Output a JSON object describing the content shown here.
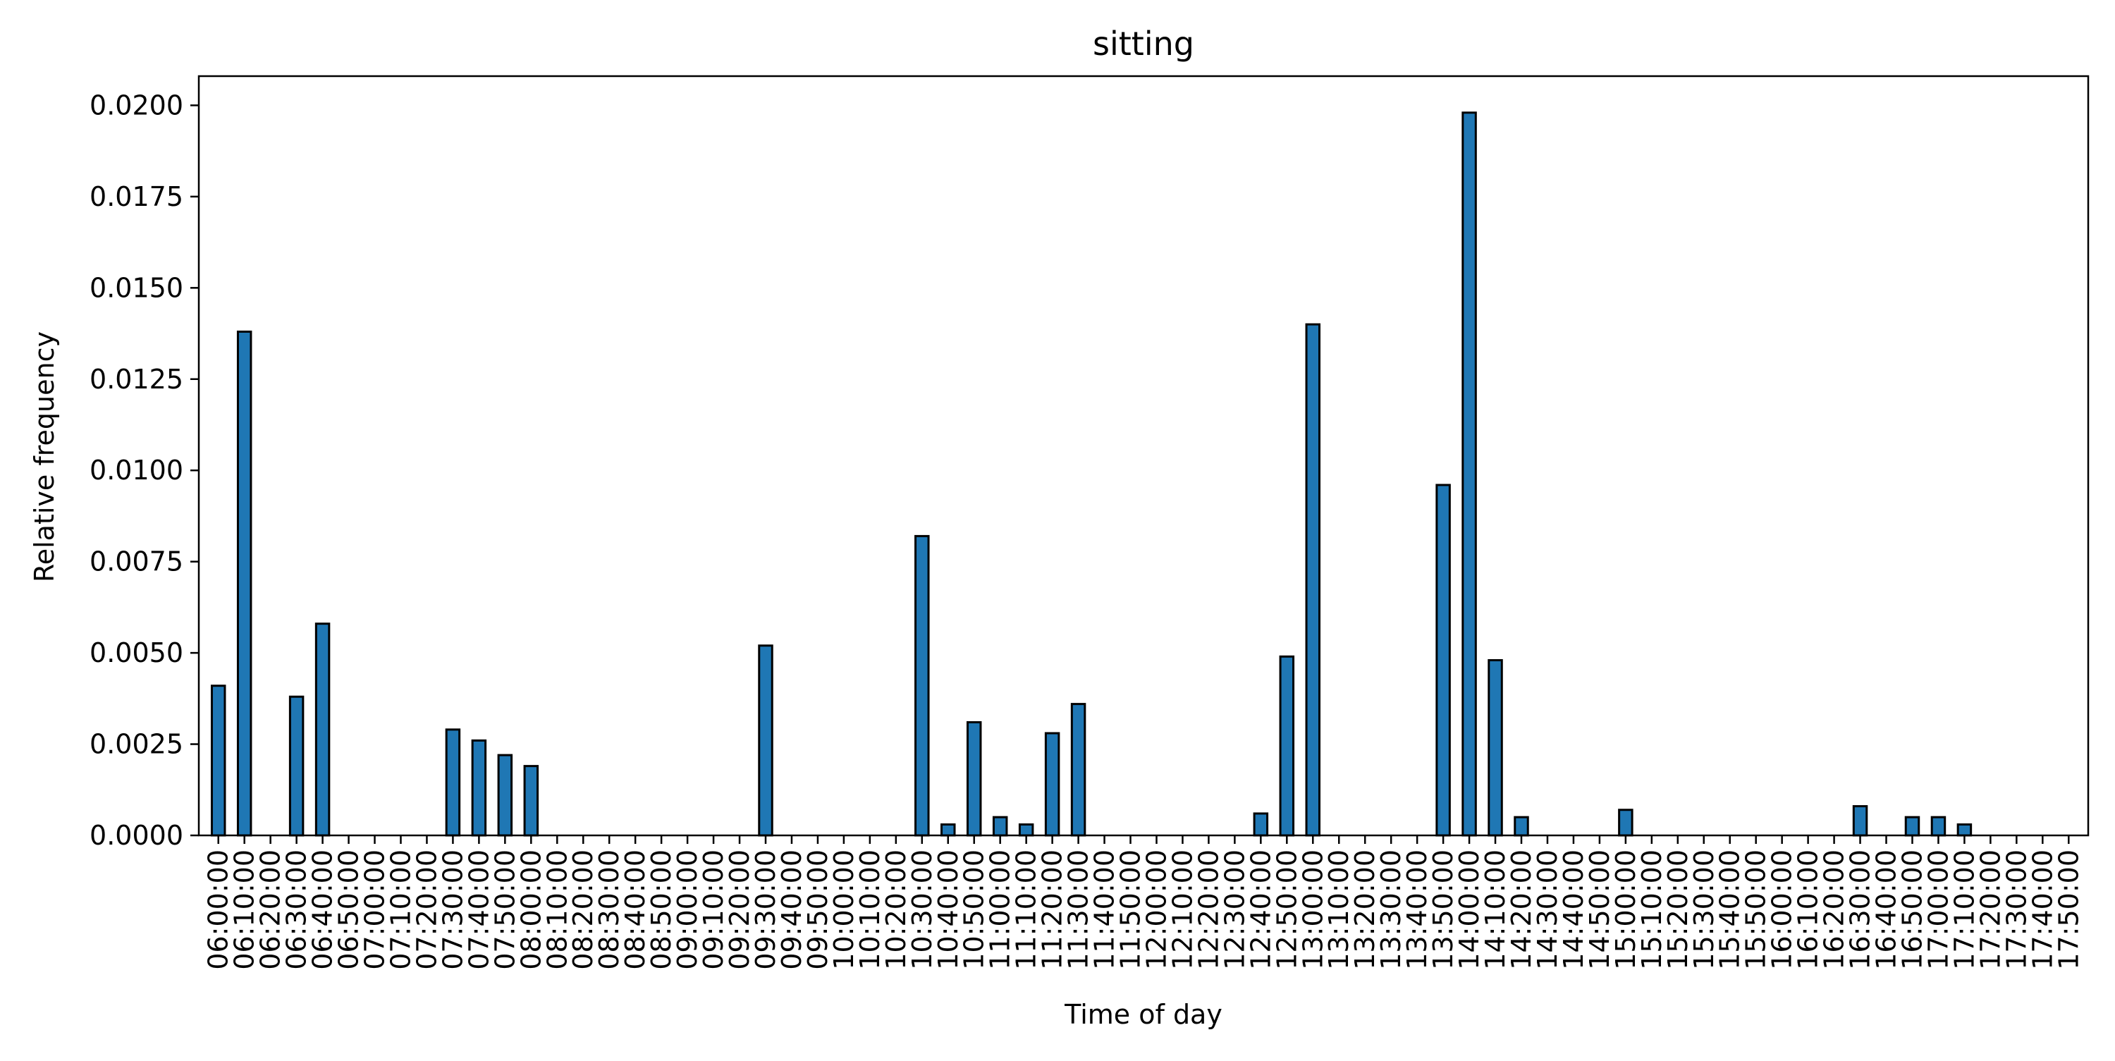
{
  "chart_data": {
    "type": "bar",
    "title": "sitting",
    "xlabel": "Time of day",
    "ylabel": "Relative frequency",
    "ylim": [
      0,
      0.0208
    ],
    "yticks": [
      "0.0000",
      "0.0025",
      "0.0050",
      "0.0075",
      "0.0100",
      "0.0125",
      "0.0150",
      "0.0175",
      "0.0200"
    ],
    "grid": false,
    "bar_color": "#1f77b4",
    "bar_edge_color": "#000000",
    "categories": [
      "06:00:00",
      "06:10:00",
      "06:20:00",
      "06:30:00",
      "06:40:00",
      "06:50:00",
      "07:00:00",
      "07:10:00",
      "07:20:00",
      "07:30:00",
      "07:40:00",
      "07:50:00",
      "08:00:00",
      "08:10:00",
      "08:20:00",
      "08:30:00",
      "08:40:00",
      "08:50:00",
      "09:00:00",
      "09:10:00",
      "09:20:00",
      "09:30:00",
      "09:40:00",
      "09:50:00",
      "10:00:00",
      "10:10:00",
      "10:20:00",
      "10:30:00",
      "10:40:00",
      "10:50:00",
      "11:00:00",
      "11:10:00",
      "11:20:00",
      "11:30:00",
      "11:40:00",
      "11:50:00",
      "12:00:00",
      "12:10:00",
      "12:20:00",
      "12:30:00",
      "12:40:00",
      "12:50:00",
      "13:00:00",
      "13:10:00",
      "13:20:00",
      "13:30:00",
      "13:40:00",
      "13:50:00",
      "14:00:00",
      "14:10:00",
      "14:20:00",
      "14:30:00",
      "14:40:00",
      "14:50:00",
      "15:00:00",
      "15:10:00",
      "15:20:00",
      "15:30:00",
      "15:40:00",
      "15:50:00",
      "16:00:00",
      "16:10:00",
      "16:20:00",
      "16:30:00",
      "16:40:00",
      "16:50:00",
      "17:00:00",
      "17:10:00",
      "17:20:00",
      "17:30:00",
      "17:40:00",
      "17:50:00"
    ],
    "bars": [
      0.0041,
      0.0138,
      0,
      0.0038,
      0.0058,
      0,
      0,
      0,
      0,
      0.0029,
      0.0026,
      0.0022,
      0.0019,
      0,
      0,
      0,
      0,
      0,
      0,
      0,
      0,
      0.0052,
      0,
      0,
      0,
      0,
      0,
      0.0082,
      0.0003,
      0.0031,
      0.0005,
      0.0003,
      0.0028,
      0.0036,
      0,
      0,
      0,
      0,
      0,
      0,
      0.0006,
      0.0049,
      0.014,
      0,
      0,
      0,
      0,
      0.0096,
      0.0198,
      0.0048,
      0.0005,
      0,
      0,
      0,
      0.0007,
      0,
      0,
      0,
      0,
      0,
      0,
      0,
      0,
      0.0008,
      0,
      0.0005,
      0.0005,
      0.0003,
      0,
      0,
      0,
      0
    ],
    "x_tick_labels_shown": [
      "06:00:00",
      "06:10:00",
      "06:20:00",
      "06:30:00",
      "06:40:00",
      "06:50:00",
      "07:00:00",
      "07:10:00",
      "07:20:00",
      "07:30:00",
      "07:40:00",
      "07:50:00",
      "08:00:00",
      "08:10:00",
      "08:20:00",
      "08:30:00",
      "08:40:00",
      "08:50:00",
      "09:00:00",
      "09:10:00",
      "09:20:00",
      "09:30:00",
      "09:40:00",
      "09:50:00",
      "10:00:00",
      "10:10:00",
      "10:20:00",
      "10:30:00",
      "10:40:00",
      "10:50:00",
      "11:00:00",
      "11:10:00",
      "11:20:00",
      "11:30:00",
      "11:40:00",
      "11:50:00",
      "12:00:00",
      "12:10:00",
      "12:20:00",
      "12:30:00",
      "12:40:00",
      "12:50:00",
      "13:00:00",
      "13:10:00",
      "13:20:00",
      "13:30:00",
      "13:40:00",
      "13:50:00",
      "14:00:00",
      "14:10:00",
      "14:20:00",
      "14:30:00",
      "14:40:00",
      "14:50:00",
      "15:00:00",
      "15:10:00",
      "15:20:00",
      "15:30:00",
      "15:40:00",
      "15:50:00",
      "16:00:00",
      "16:10:00",
      "16:20:00",
      "16:30:00",
      "16:40:00",
      "16:50:00",
      "17:00:00",
      "17:10:00",
      "17:20:00",
      "17:30:00",
      "17:40:00",
      "17:50:00"
    ]
  }
}
